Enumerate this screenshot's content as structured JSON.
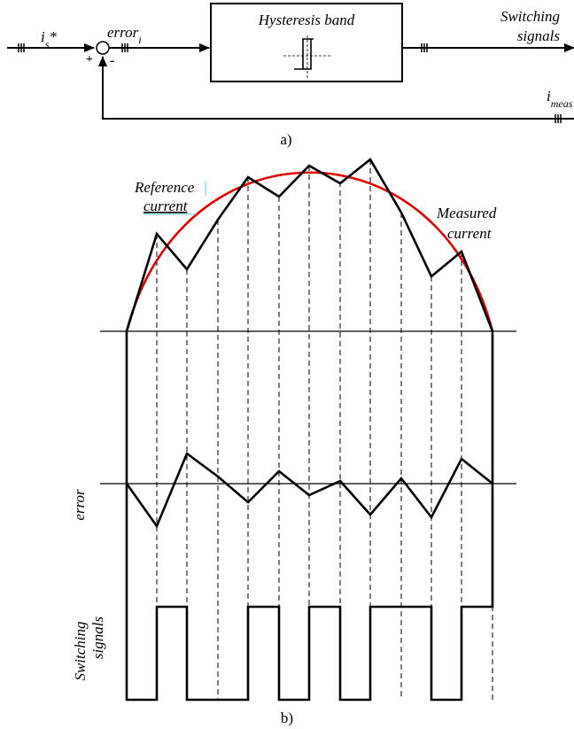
{
  "block_diagram": {
    "input_main": "i",
    "input_sub": "s",
    "input_sup": "*",
    "error_main": "error",
    "error_sub": "i",
    "block_label": "Hysteresis band",
    "output_line1": "Switching",
    "output_line2": "signals",
    "feedback_main": "i",
    "feedback_sub": "meas",
    "plus_sign": "+",
    "minus_sign": "-",
    "caption": "a)"
  },
  "waveforms": {
    "reference_line1": "Reference",
    "reference_line2": "current",
    "measured_line1": "Measured",
    "measured_line2": "current",
    "error_label": "error",
    "switching_line1": "Switching",
    "switching_line2": "signals",
    "caption": "b)",
    "colors": {
      "reference": "#e00000",
      "measured": "#000000",
      "reference_label": "#e00000",
      "link_underline": "#3fc8d8"
    }
  }
}
